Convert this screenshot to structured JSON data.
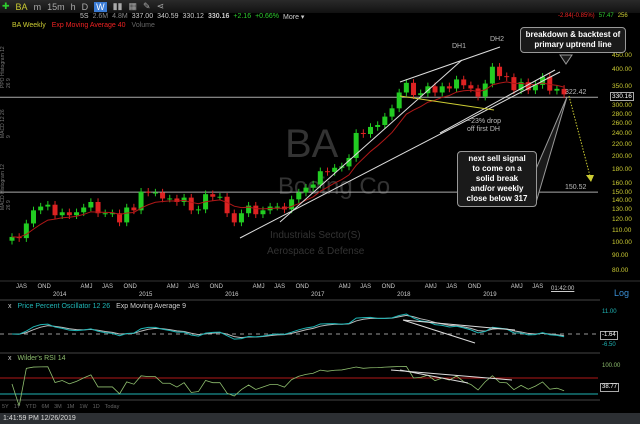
{
  "toolbar": {
    "symbol": "BA",
    "intervals": [
      "m",
      "15m",
      "h",
      "D",
      "W"
    ],
    "active_interval": "W"
  },
  "quote": {
    "a": "5S",
    "b": "2.6M",
    "c": "4.8M",
    "open": "337.00",
    "high": "340.59",
    "low": "330.12",
    "last": "330.16",
    "change": "+2.16",
    "change_pct": "+0.66%",
    "more": "More ▾",
    "right_change": "-2.84(-0.85%)",
    "right_a": "57.47",
    "right_b": "256"
  },
  "legend": {
    "series": "BA Weekly",
    "ema": "Exp Moving Average 40",
    "volume": "Volume"
  },
  "side_labels": [
    "MACD Histogram 12 26 9",
    "MACD 12 26 9",
    "PPO Histogram 12 26 9"
  ],
  "watermark": {
    "ticker": "BA",
    "name": "Boeing Co",
    "sector": "Industrials Sector(S)",
    "industry": "Aerospace & Defense"
  },
  "annotations": {
    "callout1": "breakdown & backtest of primary uptrend line",
    "dh1": "DH1",
    "dh2": "DH2",
    "drop1": "~23% drop",
    "drop2": "off first DH",
    "callout2": [
      "next sell signal",
      "to come on a",
      "solid break",
      "and/or weekly",
      "close below 317"
    ]
  },
  "levels": {
    "resistance": "322.42",
    "support": "150.52",
    "current": "330.16"
  },
  "colors": {
    "up": "#22cc22",
    "down": "#dd2222",
    "ema": "#b01818",
    "ppo": "#1fb5b5",
    "signal": "#bbbbbb",
    "rsi": "#8fbf6f"
  },
  "chart_data": [
    {
      "type": "candlestick",
      "scale": "log",
      "period": "monthly approximation of weekly chart",
      "start": "2013-07",
      "ylim": [
        80,
        600
      ],
      "y_ticks": [
        "450.00",
        "400.00",
        "350.00",
        "300.00",
        "280.00",
        "260.00",
        "240.00",
        "220.00",
        "200.00",
        "180.00",
        "160.00",
        "150.00",
        "140.00",
        "130.00",
        "120.00",
        "110.00",
        "100.00",
        "90.00",
        "80.00"
      ],
      "closes": [
        105,
        104,
        117,
        130,
        134,
        136,
        125,
        128,
        125,
        128,
        133,
        139,
        127,
        127,
        127,
        118,
        133,
        130,
        151,
        150,
        150,
        143,
        143,
        139,
        144,
        130,
        131,
        148,
        145,
        145,
        127,
        118,
        127,
        135,
        126,
        130,
        134,
        134,
        131,
        142,
        150,
        156,
        160,
        178,
        177,
        183,
        185,
        198,
        242,
        240,
        254,
        258,
        276,
        295,
        335,
        362,
        328,
        333,
        352,
        335,
        352,
        346,
        372,
        355,
        346,
        324,
        360,
        412,
        382,
        379,
        341,
        364,
        341,
        356,
        380,
        340,
        345,
        330
      ],
      "ema_period": 40,
      "x_labels": [
        "JAS",
        "OND",
        "AMJ",
        "JAS",
        "OND",
        "AMJ",
        "JAS",
        "OND",
        "AMJ",
        "JAS",
        "OND",
        "AMJ",
        "JAS",
        "OND",
        "AMJ",
        "JAS",
        "OND",
        "AMJ",
        "JAS",
        "AMJ"
      ],
      "years": [
        "2014",
        "2015",
        "2016",
        "2017",
        "2018",
        "2019"
      ],
      "time_marker": "01:42:00",
      "scale_button": "Log"
    },
    {
      "type": "line",
      "title": "Price Percent Oscillator 12 26",
      "signal": "Exp Moving Average 9",
      "y_ticks": [
        "11.00",
        "-6.50"
      ],
      "last": "-1.64",
      "ylim": [
        -6.5,
        11
      ]
    },
    {
      "type": "line",
      "title": "Wilder's RSI 14",
      "y_ticks": [
        "100.00"
      ],
      "last": "38.77",
      "levels": [
        70,
        30
      ]
    }
  ],
  "ranges": [
    "5Y",
    "1Y",
    "YTD",
    "6M",
    "3M",
    "1M",
    "1W",
    "1D",
    "Today"
  ],
  "status": "1:41:59 PM 12/26/2019"
}
